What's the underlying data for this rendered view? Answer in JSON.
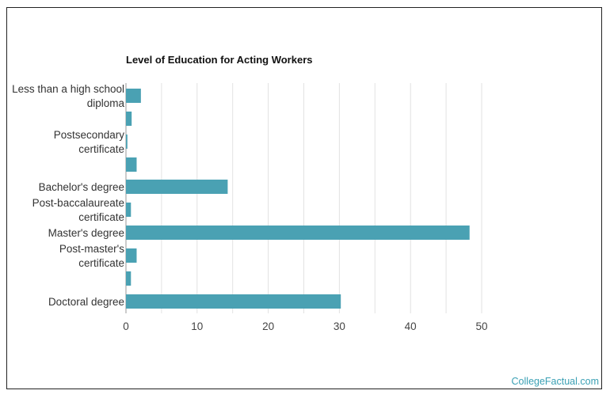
{
  "chart_data": {
    "type": "bar",
    "orientation": "horizontal",
    "title": "Level of Education for Acting Workers",
    "xlabel": "",
    "ylabel": "",
    "xlim": [
      0,
      50
    ],
    "xticks": [
      0,
      10,
      20,
      30,
      40,
      50
    ],
    "grid": true,
    "bar_color": "#4aa1b3",
    "categories": [
      [
        "Less than a high school",
        "diploma"
      ],
      [],
      [
        "Postsecondary",
        "certificate"
      ],
      [],
      [
        "Bachelor's degree"
      ],
      [
        "Post-baccalaureate",
        "certificate"
      ],
      [
        "Master's degree"
      ],
      [
        "Post-master's",
        "certificate"
      ],
      [],
      [
        "Doctoral degree"
      ]
    ],
    "values": [
      2.1,
      0.8,
      0.2,
      1.5,
      14.3,
      0.7,
      48.3,
      1.5,
      0.7,
      30.2
    ]
  },
  "watermark": "CollegeFactual.com"
}
